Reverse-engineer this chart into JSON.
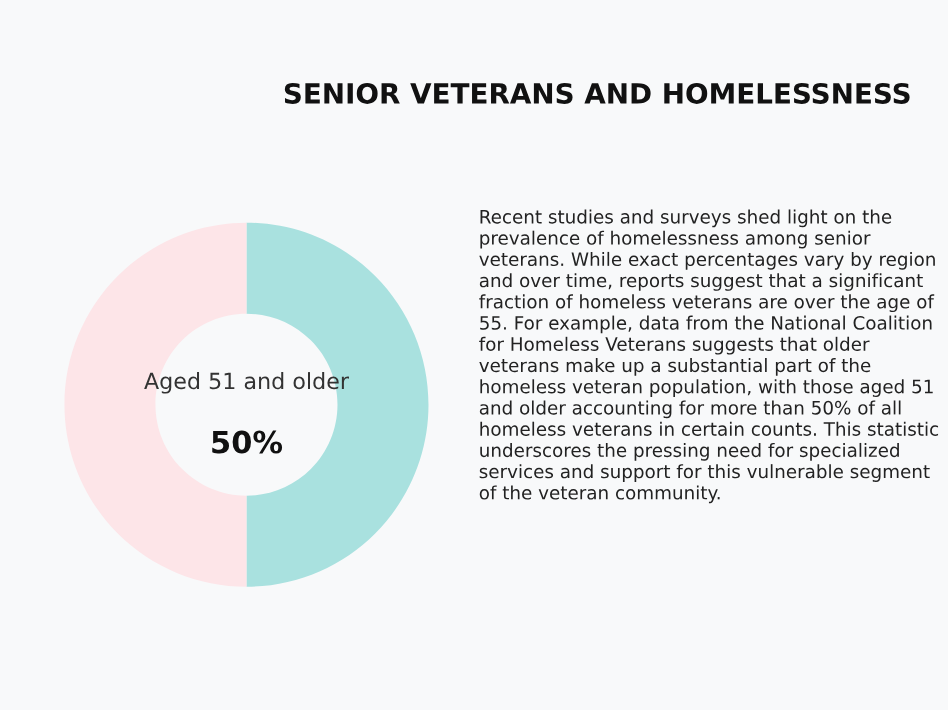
{
  "chart_data": {
    "type": "donut",
    "title": "SENIOR VETERANS AND HOMELESSNESS",
    "categories": [
      "Aged 51 and older",
      null
    ],
    "values": [
      50,
      50
    ],
    "value_labels": [
      "50%",
      null
    ],
    "colors": [
      "#a9e1df",
      "#fde5e8"
    ],
    "legend": false,
    "annotations": [
      "Recent studies and surveys shed light on the prevalence of homelessness among senior veterans. While exact percentages vary by region and over time, reports suggest that a significant fraction of homeless veterans are over the age of 55. For example, data from the National Coalition for Homeless Veterans suggests that older veterans make up a substantial part of the homeless veteran population, with those aged 51 and older accounting for more than 50% of all homeless veterans in certain counts. This statistic underscores the pressing need for specialized services and support for this vulnerable segment of the veteran community."
    ]
  }
}
